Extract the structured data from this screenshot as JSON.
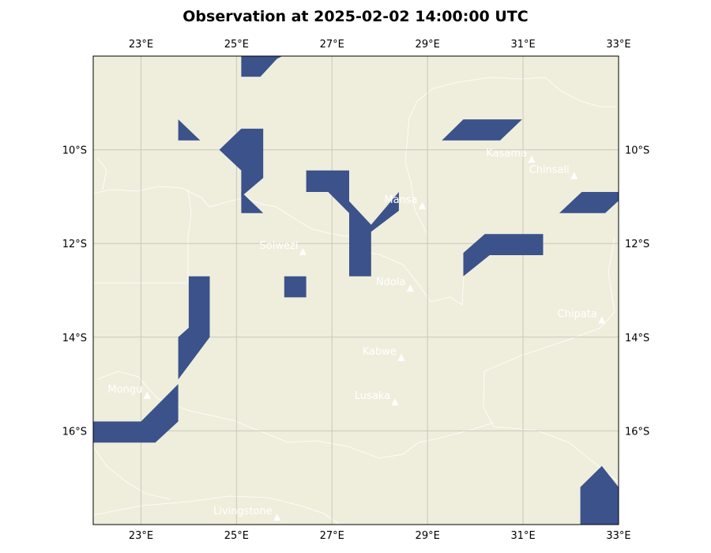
{
  "title": "Observation at 2025-02-02 14:00:00 UTC",
  "map": {
    "extent": {
      "lon_min": 22,
      "lon_max": 33,
      "lat_min": -18,
      "lat_max": -8
    },
    "land_color": "#efeedc",
    "border_color": "#ffffff",
    "grid_color": "#c8c8bc",
    "observation_color": "#3b528b",
    "city_marker": "triangle-icon",
    "lon_ticks": [
      {
        "value": 23,
        "label": "23°E"
      },
      {
        "value": 25,
        "label": "25°E"
      },
      {
        "value": 27,
        "label": "27°E"
      },
      {
        "value": 29,
        "label": "29°E"
      },
      {
        "value": 31,
        "label": "31°E"
      },
      {
        "value": 33,
        "label": "33°E"
      }
    ],
    "lat_ticks": [
      {
        "value": -10,
        "label": "10°S"
      },
      {
        "value": -12,
        "label": "12°S"
      },
      {
        "value": -14,
        "label": "14°S"
      },
      {
        "value": -16,
        "label": "16°S"
      }
    ],
    "cities": [
      {
        "name": "Kasama",
        "lon": 31.18,
        "lat": -10.21
      },
      {
        "name": "Chinsali",
        "lon": 32.07,
        "lat": -10.56
      },
      {
        "name": "Mansa",
        "lon": 28.89,
        "lat": -11.2
      },
      {
        "name": "Solwezi",
        "lon": 26.39,
        "lat": -12.18
      },
      {
        "name": "Ndola",
        "lon": 28.64,
        "lat": -12.96
      },
      {
        "name": "Chipata",
        "lon": 32.65,
        "lat": -13.64
      },
      {
        "name": "Kabwe",
        "lon": 28.45,
        "lat": -14.44
      },
      {
        "name": "Mongu",
        "lon": 23.13,
        "lat": -15.25
      },
      {
        "name": "Lusaka",
        "lon": 28.32,
        "lat": -15.39
      },
      {
        "name": "Livingstone",
        "lon": 25.85,
        "lat": -17.85
      }
    ],
    "observation_cells": [
      [
        [
          25.1,
          -8.44
        ],
        [
          25.96,
          -8.0
        ],
        [
          25.5,
          -8.0
        ],
        [
          25.1,
          -8.44
        ]
      ],
      [
        [
          25.1,
          -8.0
        ],
        [
          25.9,
          -8.0
        ],
        [
          25.5,
          -8.44
        ],
        [
          25.1,
          -8.44
        ]
      ],
      [
        [
          23.78,
          -9.35
        ],
        [
          24.24,
          -9.8
        ],
        [
          23.78,
          -9.8
        ]
      ],
      [
        [
          29.3,
          -9.8
        ],
        [
          29.75,
          -9.35
        ],
        [
          30.98,
          -9.35
        ],
        [
          30.52,
          -9.8
        ]
      ],
      [
        [
          24.64,
          -10.0
        ],
        [
          25.1,
          -9.55
        ],
        [
          25.56,
          -9.55
        ],
        [
          25.56,
          -10.6
        ],
        [
          25.1,
          -11.0
        ],
        [
          25.1,
          -10.44
        ]
      ],
      [
        [
          25.1,
          -10.9
        ],
        [
          25.56,
          -11.35
        ],
        [
          25.1,
          -11.35
        ]
      ],
      [
        [
          26.46,
          -10.44
        ],
        [
          27.36,
          -10.44
        ],
        [
          27.36,
          -11.1
        ],
        [
          27.82,
          -11.6
        ],
        [
          28.4,
          -10.9
        ],
        [
          28.4,
          -11.3
        ],
        [
          27.82,
          -11.75
        ],
        [
          27.82,
          -12.7
        ],
        [
          27.36,
          -12.7
        ],
        [
          27.36,
          -11.35
        ],
        [
          26.92,
          -10.9
        ],
        [
          26.46,
          -10.9
        ]
      ],
      [
        [
          31.76,
          -11.35
        ],
        [
          32.23,
          -10.9
        ],
        [
          33.2,
          -10.9
        ],
        [
          32.72,
          -11.35
        ]
      ],
      [
        [
          29.75,
          -12.2
        ],
        [
          30.2,
          -11.8
        ],
        [
          31.42,
          -11.8
        ],
        [
          31.42,
          -12.25
        ],
        [
          30.3,
          -12.25
        ],
        [
          29.75,
          -12.7
        ]
      ],
      [
        [
          24.0,
          -12.7
        ],
        [
          24.44,
          -12.7
        ],
        [
          24.44,
          -14.0
        ],
        [
          23.78,
          -14.9
        ],
        [
          23.78,
          -14.0
        ],
        [
          24.0,
          -13.8
        ]
      ],
      [
        [
          26.0,
          -12.7
        ],
        [
          26.46,
          -12.7
        ],
        [
          26.46,
          -13.15
        ],
        [
          26.0,
          -13.15
        ]
      ],
      [
        [
          22.0,
          -15.8
        ],
        [
          23.0,
          -15.8
        ],
        [
          23.78,
          -15.0
        ],
        [
          23.78,
          -15.8
        ],
        [
          23.3,
          -16.25
        ],
        [
          22.0,
          -16.25
        ]
      ],
      [
        [
          32.2,
          -17.2
        ],
        [
          32.65,
          -16.75
        ],
        [
          33.0,
          -17.2
        ],
        [
          33.0,
          -18.0
        ],
        [
          32.2,
          -18.0
        ]
      ]
    ]
  }
}
